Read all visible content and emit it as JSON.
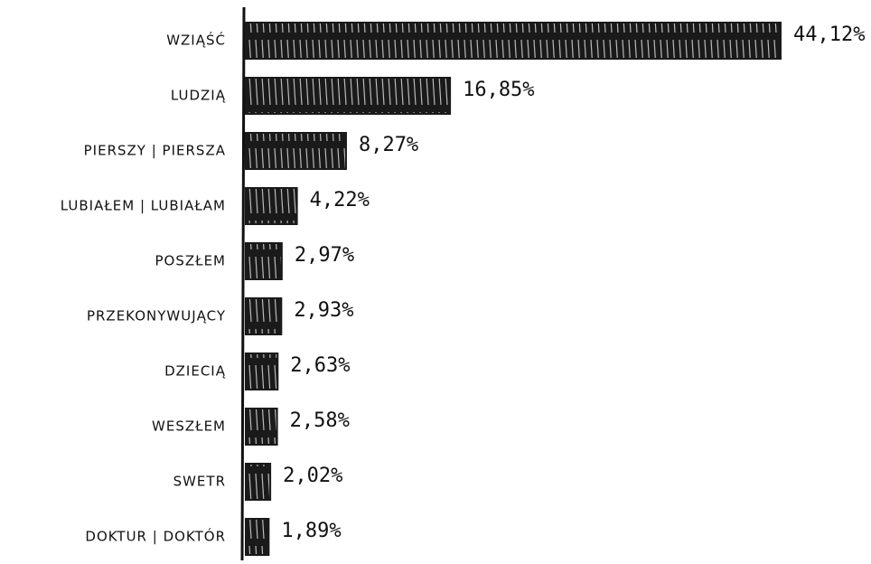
{
  "chart_data": {
    "type": "bar",
    "orientation": "horizontal",
    "color": "#1a1a1a",
    "categories": [
      "WZIĄŚĆ",
      "LUDZIĄ",
      "PIERSZY | PIERSZA",
      "LUBIAŁEM | LUBIAŁAM",
      "POSZŁEM",
      "PRZEKONYWUJĄCY",
      "DZIECIĄ",
      "WESZŁEM",
      "SWETR",
      "DOKTUR | DOKTÓR"
    ],
    "values": [
      44.12,
      16.85,
      8.27,
      4.22,
      2.97,
      2.93,
      2.63,
      2.58,
      2.02,
      1.89
    ],
    "value_labels": [
      "44,12%",
      "16,85%",
      "8,27%",
      "4,22%",
      "2,97%",
      "2,93%",
      "2,63%",
      "2,58%",
      "2,02%",
      "1,89%"
    ]
  }
}
